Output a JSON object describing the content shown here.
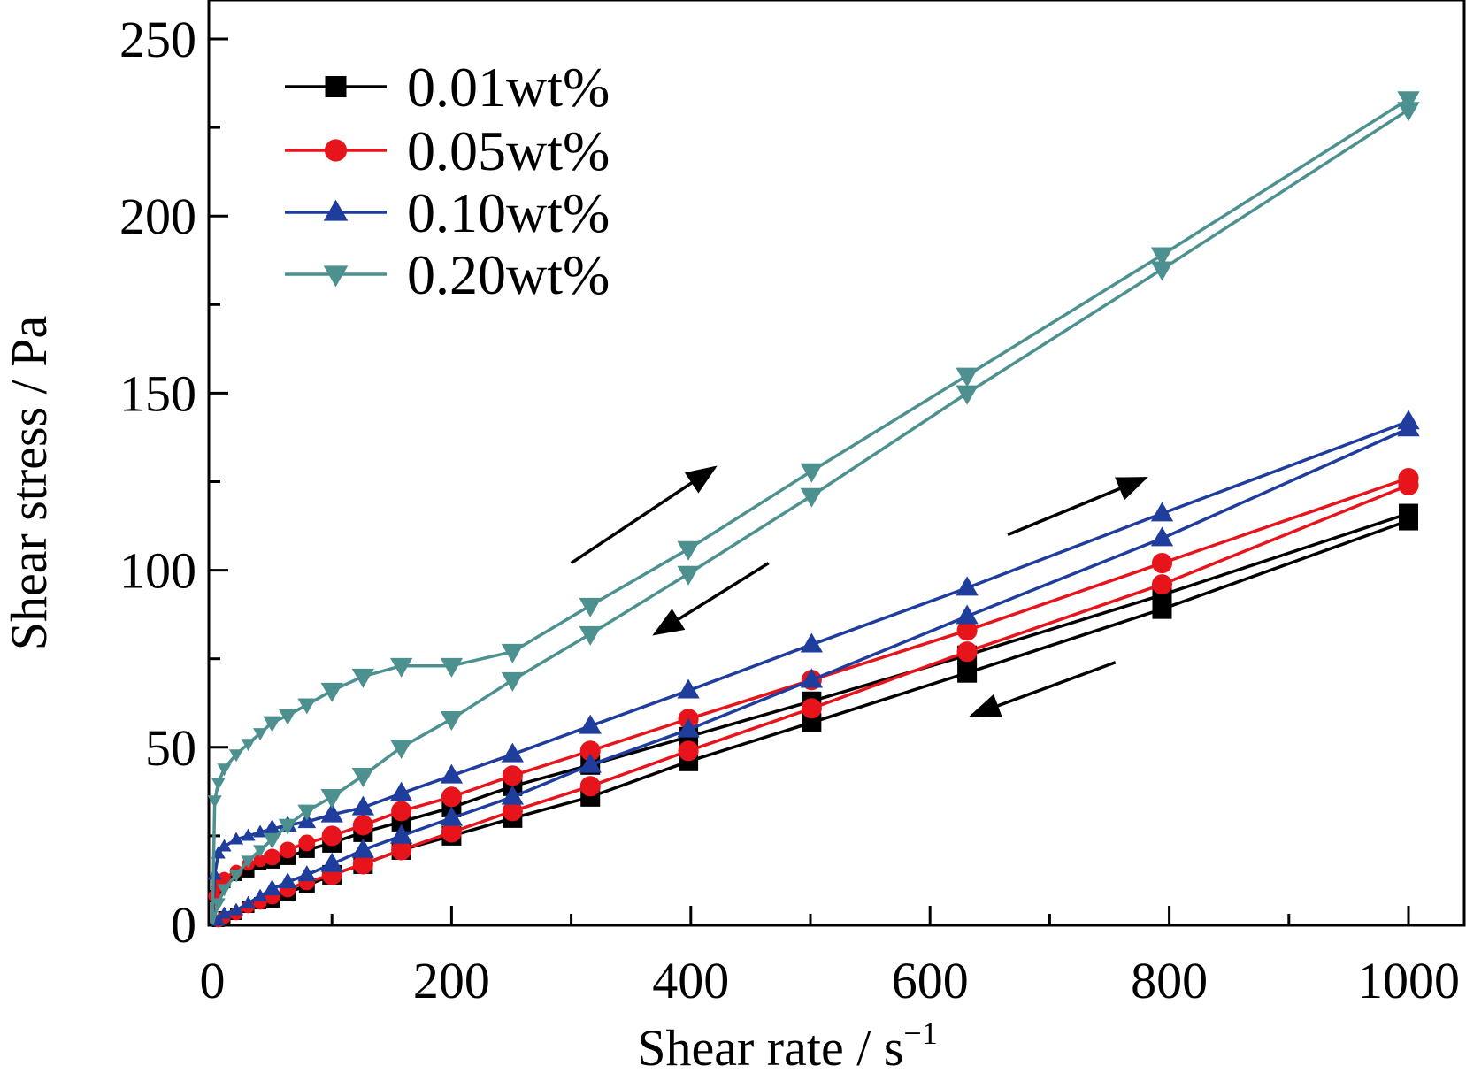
{
  "chart_data": {
    "type": "line",
    "xlabel": "Shear rate / s",
    "xlabel_sup": "−1",
    "ylabel": "Shear stress / Pa",
    "xlim": [
      0,
      1050
    ],
    "ylim": [
      0,
      260
    ],
    "x_ticks": [
      0,
      200,
      400,
      600,
      800,
      1000
    ],
    "x_tick_labels": [
      "0",
      "200",
      "400",
      "600",
      "800",
      "1000"
    ],
    "y_ticks": [
      0,
      50,
      100,
      150,
      200,
      250
    ],
    "y_tick_labels": [
      "0",
      "50",
      "100",
      "150",
      "200",
      "250"
    ],
    "grid": false,
    "legend_position": "top-left",
    "series": [
      {
        "name": "0.01wt%",
        "color": "#000000",
        "marker": "square",
        "up": [
          [
            0,
            0
          ],
          [
            2,
            8
          ],
          [
            5,
            10
          ],
          [
            10,
            12
          ],
          [
            20,
            14
          ],
          [
            30,
            15
          ],
          [
            40,
            17
          ],
          [
            50,
            18
          ],
          [
            63,
            19
          ],
          [
            79,
            21
          ],
          [
            100,
            23
          ],
          [
            126,
            26
          ],
          [
            158,
            29
          ],
          [
            200,
            33
          ],
          [
            251,
            39
          ],
          [
            316,
            45
          ],
          [
            398,
            53
          ],
          [
            501,
            63
          ],
          [
            631,
            76
          ],
          [
            794,
            93
          ],
          [
            1000,
            116
          ]
        ],
        "down": [
          [
            1000,
            114
          ],
          [
            794,
            89
          ],
          [
            631,
            71
          ],
          [
            501,
            57
          ],
          [
            398,
            46
          ],
          [
            316,
            36
          ],
          [
            251,
            30
          ],
          [
            200,
            25
          ],
          [
            158,
            21
          ],
          [
            126,
            17
          ],
          [
            100,
            14
          ],
          [
            79,
            11
          ],
          [
            63,
            9
          ],
          [
            50,
            7
          ],
          [
            40,
            6
          ],
          [
            30,
            5
          ],
          [
            20,
            3
          ],
          [
            10,
            2
          ],
          [
            5,
            1
          ],
          [
            0,
            0
          ]
        ]
      },
      {
        "name": "0.05wt%",
        "color": "#e8141b",
        "marker": "circle",
        "up": [
          [
            0,
            0
          ],
          [
            2,
            8
          ],
          [
            5,
            11
          ],
          [
            10,
            13
          ],
          [
            20,
            15
          ],
          [
            30,
            17
          ],
          [
            40,
            18
          ],
          [
            50,
            19
          ],
          [
            63,
            21
          ],
          [
            79,
            23
          ],
          [
            100,
            25
          ],
          [
            126,
            28
          ],
          [
            158,
            32
          ],
          [
            200,
            36
          ],
          [
            251,
            42
          ],
          [
            316,
            49
          ],
          [
            398,
            58
          ],
          [
            501,
            69
          ],
          [
            631,
            83
          ],
          [
            794,
            102
          ],
          [
            1000,
            126
          ]
        ],
        "down": [
          [
            1000,
            124
          ],
          [
            794,
            96
          ],
          [
            631,
            77
          ],
          [
            501,
            61
          ],
          [
            398,
            49
          ],
          [
            316,
            39
          ],
          [
            251,
            32
          ],
          [
            200,
            26
          ],
          [
            158,
            21
          ],
          [
            126,
            17
          ],
          [
            100,
            14
          ],
          [
            79,
            12
          ],
          [
            63,
            10
          ],
          [
            50,
            8
          ],
          [
            40,
            6
          ],
          [
            30,
            5
          ],
          [
            20,
            3
          ],
          [
            10,
            2
          ],
          [
            5,
            1
          ],
          [
            0,
            0
          ]
        ]
      },
      {
        "name": "0.10wt%",
        "color": "#1f3d9c",
        "marker": "triangle-up",
        "up": [
          [
            0,
            0
          ],
          [
            2,
            14
          ],
          [
            5,
            20
          ],
          [
            10,
            22
          ],
          [
            20,
            24
          ],
          [
            30,
            25
          ],
          [
            40,
            26
          ],
          [
            50,
            27
          ],
          [
            63,
            28
          ],
          [
            79,
            29
          ],
          [
            100,
            31
          ],
          [
            126,
            33
          ],
          [
            158,
            37
          ],
          [
            200,
            42
          ],
          [
            251,
            48
          ],
          [
            316,
            56
          ],
          [
            398,
            66
          ],
          [
            501,
            79
          ],
          [
            631,
            95
          ],
          [
            794,
            116
          ],
          [
            1000,
            142
          ]
        ],
        "down": [
          [
            1000,
            140
          ],
          [
            794,
            109
          ],
          [
            631,
            87
          ],
          [
            501,
            69
          ],
          [
            398,
            55
          ],
          [
            316,
            45
          ],
          [
            251,
            36
          ],
          [
            200,
            30
          ],
          [
            158,
            25
          ],
          [
            126,
            21
          ],
          [
            100,
            17
          ],
          [
            79,
            14
          ],
          [
            63,
            12
          ],
          [
            50,
            10
          ],
          [
            40,
            8
          ],
          [
            30,
            6
          ],
          [
            20,
            4
          ],
          [
            10,
            3
          ],
          [
            5,
            1
          ],
          [
            0,
            0
          ]
        ]
      },
      {
        "name": "0.20wt%",
        "color": "#4c9090",
        "marker": "triangle-down",
        "up": [
          [
            0,
            0
          ],
          [
            2,
            35
          ],
          [
            5,
            40
          ],
          [
            10,
            44
          ],
          [
            20,
            48
          ],
          [
            30,
            51
          ],
          [
            40,
            54
          ],
          [
            50,
            57
          ],
          [
            63,
            59
          ],
          [
            79,
            62
          ],
          [
            100,
            66
          ],
          [
            126,
            70
          ],
          [
            158,
            73
          ],
          [
            200,
            73
          ],
          [
            251,
            77
          ],
          [
            316,
            90
          ],
          [
            398,
            106
          ],
          [
            501,
            128
          ],
          [
            631,
            155
          ],
          [
            794,
            189
          ],
          [
            1000,
            233
          ]
        ],
        "down": [
          [
            1000,
            230
          ],
          [
            794,
            185
          ],
          [
            631,
            150
          ],
          [
            501,
            121
          ],
          [
            398,
            99
          ],
          [
            316,
            82
          ],
          [
            251,
            69
          ],
          [
            200,
            58
          ],
          [
            158,
            50
          ],
          [
            126,
            42
          ],
          [
            100,
            36
          ],
          [
            79,
            32
          ],
          [
            63,
            28
          ],
          [
            50,
            24
          ],
          [
            40,
            21
          ],
          [
            30,
            18
          ],
          [
            20,
            14
          ],
          [
            10,
            10
          ],
          [
            5,
            6
          ],
          [
            0,
            0
          ]
        ]
      }
    ],
    "annotations": [
      {
        "type": "arrow",
        "from": [
          300,
          102
        ],
        "to": [
          420,
          129
        ]
      },
      {
        "type": "arrow",
        "from": [
          465,
          102
        ],
        "to": [
          370,
          82
        ]
      },
      {
        "type": "arrow",
        "from": [
          665,
          110
        ],
        "to": [
          780,
          126
        ]
      },
      {
        "type": "arrow",
        "from": [
          755,
          74
        ],
        "to": [
          635,
          59
        ]
      }
    ]
  }
}
